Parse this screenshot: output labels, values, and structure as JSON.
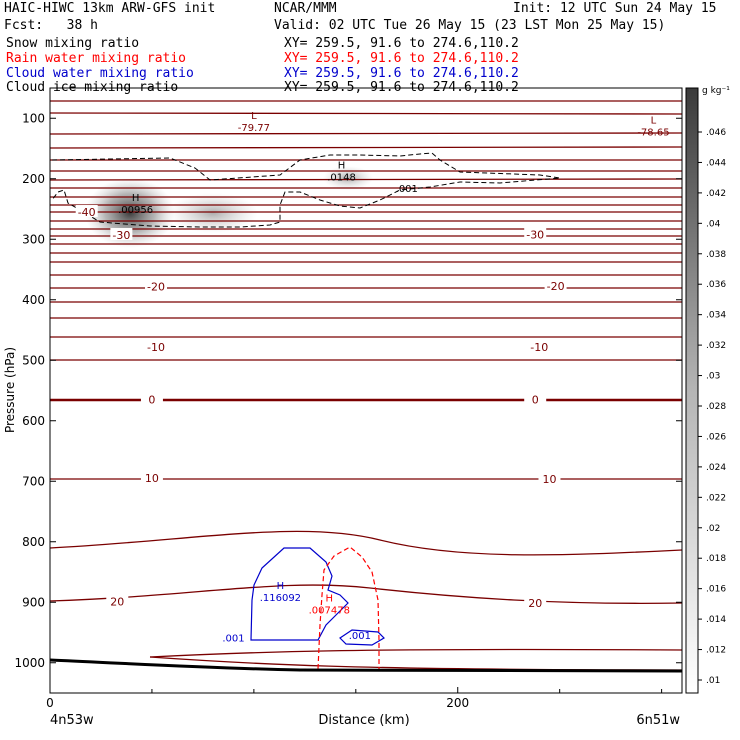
{
  "header": {
    "model": "HAIC-HIWC 13km ARW-GFS init",
    "org": "NCAR/MMM",
    "init": "Init: 12 UTC Sun 24 May 15",
    "fcst": "Fcst:   38 h",
    "valid": "Valid: 02 UTC Tue 26 May 15 (23 LST Mon 25 May 15)",
    "fields": [
      {
        "name": "Snow mixing ratio",
        "xy": "XY= 259.5, 91.6 to 274.6,110.2",
        "color": "#000000"
      },
      {
        "name": "Rain water mixing ratio",
        "xy": "XY= 259.5, 91.6 to 274.6,110.2",
        "color": "#ff0000"
      },
      {
        "name": "Cloud water mixing ratio",
        "xy": "XY= 259.5, 91.6 to 274.6,110.2",
        "color": "#0000cc"
      },
      {
        "name": "Cloud ice mixing ratio",
        "xy": "XY= 259.5, 91.6 to 274.6,110.2",
        "color": "#000000"
      }
    ]
  },
  "chart_data": {
    "type": "contour",
    "ylabel": "Pressure (hPa)",
    "xlabel": "Distance (km)",
    "x_ticks": [
      0,
      200
    ],
    "x_range": [
      0,
      310
    ],
    "y_ticks": [
      100,
      200,
      300,
      400,
      500,
      600,
      700,
      800,
      900,
      1000
    ],
    "y_range": [
      1050,
      50
    ],
    "left_endpoint": "4n53w",
    "right_endpoint": "6n51w",
    "colorbar": {
      "unit": "g kg⁻¹",
      "levels": [
        ".01",
        ".012",
        ".014",
        ".016",
        ".018",
        ".02",
        ".022",
        ".024",
        ".026",
        ".028",
        ".03",
        ".032",
        ".034",
        ".036",
        ".038",
        ".04",
        ".042",
        ".044",
        ".046"
      ]
    },
    "temperature_labels": [
      {
        "text": "-40",
        "x": 18,
        "p": 255
      },
      {
        "text": "-30",
        "x": 35,
        "p": 293
      },
      {
        "text": "-30",
        "x": 238,
        "p": 292
      },
      {
        "text": "-20",
        "x": 52,
        "p": 378
      },
      {
        "text": "-20",
        "x": 248,
        "p": 377
      },
      {
        "text": "-10",
        "x": 52,
        "p": 478
      },
      {
        "text": "-10",
        "x": 240,
        "p": 478
      },
      {
        "text": "0",
        "x": 50,
        "p": 565
      },
      {
        "text": "0",
        "x": 238,
        "p": 565
      },
      {
        "text": "10",
        "x": 50,
        "p": 695
      },
      {
        "text": "10",
        "x": 245,
        "p": 696
      },
      {
        "text": "20",
        "x": 33,
        "p": 899
      },
      {
        "text": "20",
        "x": 238,
        "p": 901
      }
    ],
    "extrema": [
      {
        "type": "L",
        "value": "-79.77",
        "x": 100,
        "p": 108,
        "color": "#7a0000"
      },
      {
        "type": "L",
        "value": "-78.65",
        "x": 296,
        "p": 115,
        "color": "#7a0000"
      },
      {
        "type": "H",
        "value": ".0148",
        "x": 143,
        "p": 190,
        "color": "#000000"
      },
      {
        "type": "H",
        "value": ".00956",
        "x": 42,
        "p": 243,
        "color": "#000000"
      },
      {
        "type": "H",
        "value": ".116092",
        "x": 113,
        "p": 885,
        "color": "#0000cc"
      },
      {
        "type": "H",
        "value": ".007478",
        "x": 137,
        "p": 905,
        "color": "#ff0000"
      }
    ],
    "contour_labels": [
      {
        "text": ".001",
        "x": 175,
        "p": 215,
        "color": "#000000"
      },
      {
        "text": ".001",
        "x": 90,
        "p": 958,
        "color": "#0000cc"
      },
      {
        "text": ".001",
        "x": 152,
        "p": 954,
        "color": "#0000cc"
      }
    ]
  }
}
